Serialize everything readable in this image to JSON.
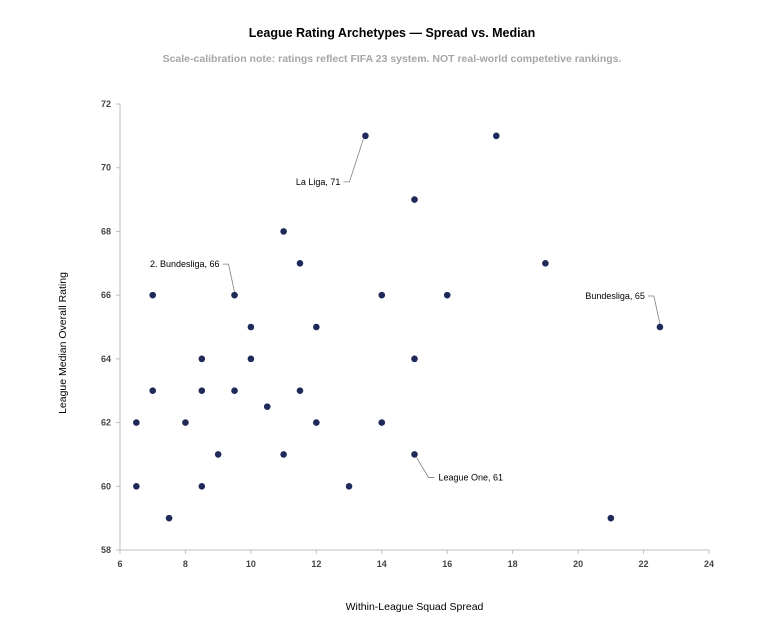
{
  "chart_data": {
    "type": "scatter",
    "title": "League Rating Archetypes — Spread vs. Median",
    "subtitle": "Scale-calibration note: ratings reflect FIFA 23 system. NOT real-world competetive rankings.",
    "xlabel": "Within-League Squad Spread",
    "ylabel": "League Median Overall Rating",
    "xlim": [
      6,
      24
    ],
    "ylim": [
      58,
      72
    ],
    "xticks": [
      6,
      8,
      10,
      12,
      14,
      16,
      18,
      20,
      22,
      24
    ],
    "yticks": [
      58,
      60,
      62,
      64,
      66,
      68,
      70,
      72
    ],
    "grid": false,
    "point_color": "#1f2a5a",
    "points": [
      {
        "x": 13.5,
        "y": 71
      },
      {
        "x": 17.5,
        "y": 71
      },
      {
        "x": 15,
        "y": 69
      },
      {
        "x": 11,
        "y": 68
      },
      {
        "x": 11.5,
        "y": 67
      },
      {
        "x": 19,
        "y": 67
      },
      {
        "x": 7,
        "y": 66
      },
      {
        "x": 9.5,
        "y": 66
      },
      {
        "x": 14,
        "y": 66
      },
      {
        "x": 16,
        "y": 66
      },
      {
        "x": 22.5,
        "y": 65
      },
      {
        "x": 10,
        "y": 65
      },
      {
        "x": 12,
        "y": 65
      },
      {
        "x": 8.5,
        "y": 64
      },
      {
        "x": 10,
        "y": 64
      },
      {
        "x": 15,
        "y": 64
      },
      {
        "x": 7,
        "y": 63
      },
      {
        "x": 8.5,
        "y": 63
      },
      {
        "x": 9.5,
        "y": 63
      },
      {
        "x": 11.5,
        "y": 63
      },
      {
        "x": 10.5,
        "y": 62.5
      },
      {
        "x": 6.5,
        "y": 62
      },
      {
        "x": 8,
        "y": 62
      },
      {
        "x": 12,
        "y": 62
      },
      {
        "x": 14,
        "y": 62
      },
      {
        "x": 9,
        "y": 61
      },
      {
        "x": 11,
        "y": 61
      },
      {
        "x": 15,
        "y": 61
      },
      {
        "x": 6.5,
        "y": 60
      },
      {
        "x": 8.5,
        "y": 60
      },
      {
        "x": 13,
        "y": 60
      },
      {
        "x": 7.5,
        "y": 59
      },
      {
        "x": 21,
        "y": 59
      }
    ],
    "annotations": [
      {
        "text": "La Liga, 71",
        "x": 13.5,
        "y": 71,
        "side": "left-below"
      },
      {
        "text": "2. Bundesliga, 66",
        "x": 9.5,
        "y": 66,
        "side": "left-above"
      },
      {
        "text": "Bundesliga, 65",
        "x": 22.5,
        "y": 65,
        "side": "left-above"
      },
      {
        "text": "League One, 61",
        "x": 15,
        "y": 61,
        "side": "right-below"
      }
    ]
  }
}
